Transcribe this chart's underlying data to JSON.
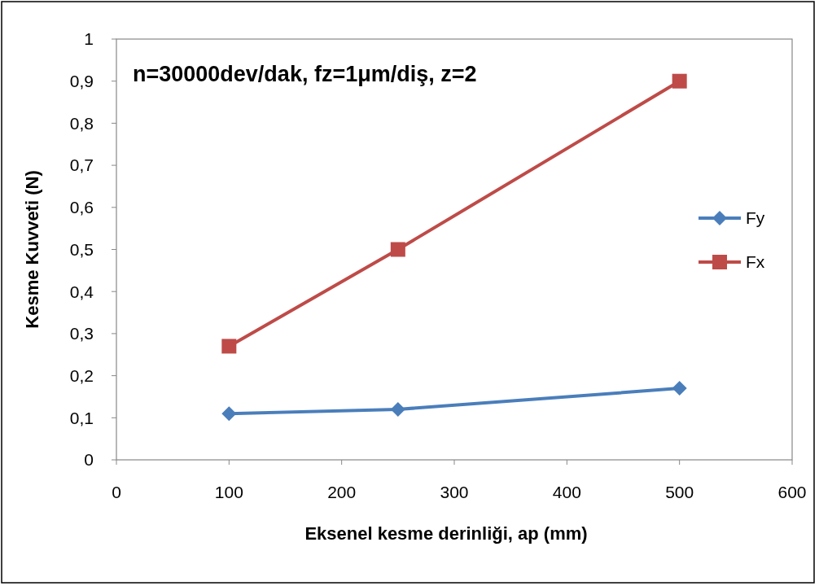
{
  "chart_data": {
    "type": "line",
    "xlabel": "Eksenel kesme derinliği, ap (mm)",
    "ylabel": "Kesme Kuvveti (N)",
    "annotations": [
      "n=30000dev/dak, fz=1μm/diş, z=2"
    ],
    "x": [
      100,
      250,
      500
    ],
    "series": [
      {
        "name": "Fy",
        "color": "#4a7ebb",
        "values": [
          0.11,
          0.12,
          0.17
        ],
        "marker": "diamond"
      },
      {
        "name": "Fx",
        "color": "#be4b48",
        "values": [
          0.27,
          0.5,
          0.9
        ],
        "marker": "square"
      }
    ],
    "xlim": [
      0,
      600
    ],
    "xticks": [
      0,
      100,
      200,
      300,
      400,
      500,
      600
    ],
    "ylim": [
      0,
      1
    ],
    "yticks": [
      0,
      {
        "value": 0.1,
        "label": "0,1"
      },
      {
        "value": 0.2,
        "label": "0,2"
      },
      {
        "value": 0.3,
        "label": "0,3"
      },
      {
        "value": 0.4,
        "label": "0,4"
      },
      {
        "value": 0.5,
        "label": "0,5"
      },
      {
        "value": 0.6,
        "label": "0,6"
      },
      {
        "value": 0.7,
        "label": "0,7"
      },
      {
        "value": 0.8,
        "label": "0,8"
      },
      {
        "value": 0.9,
        "label": "0,9"
      },
      1
    ],
    "grid": false,
    "legend": "right",
    "line_style": "solid"
  }
}
